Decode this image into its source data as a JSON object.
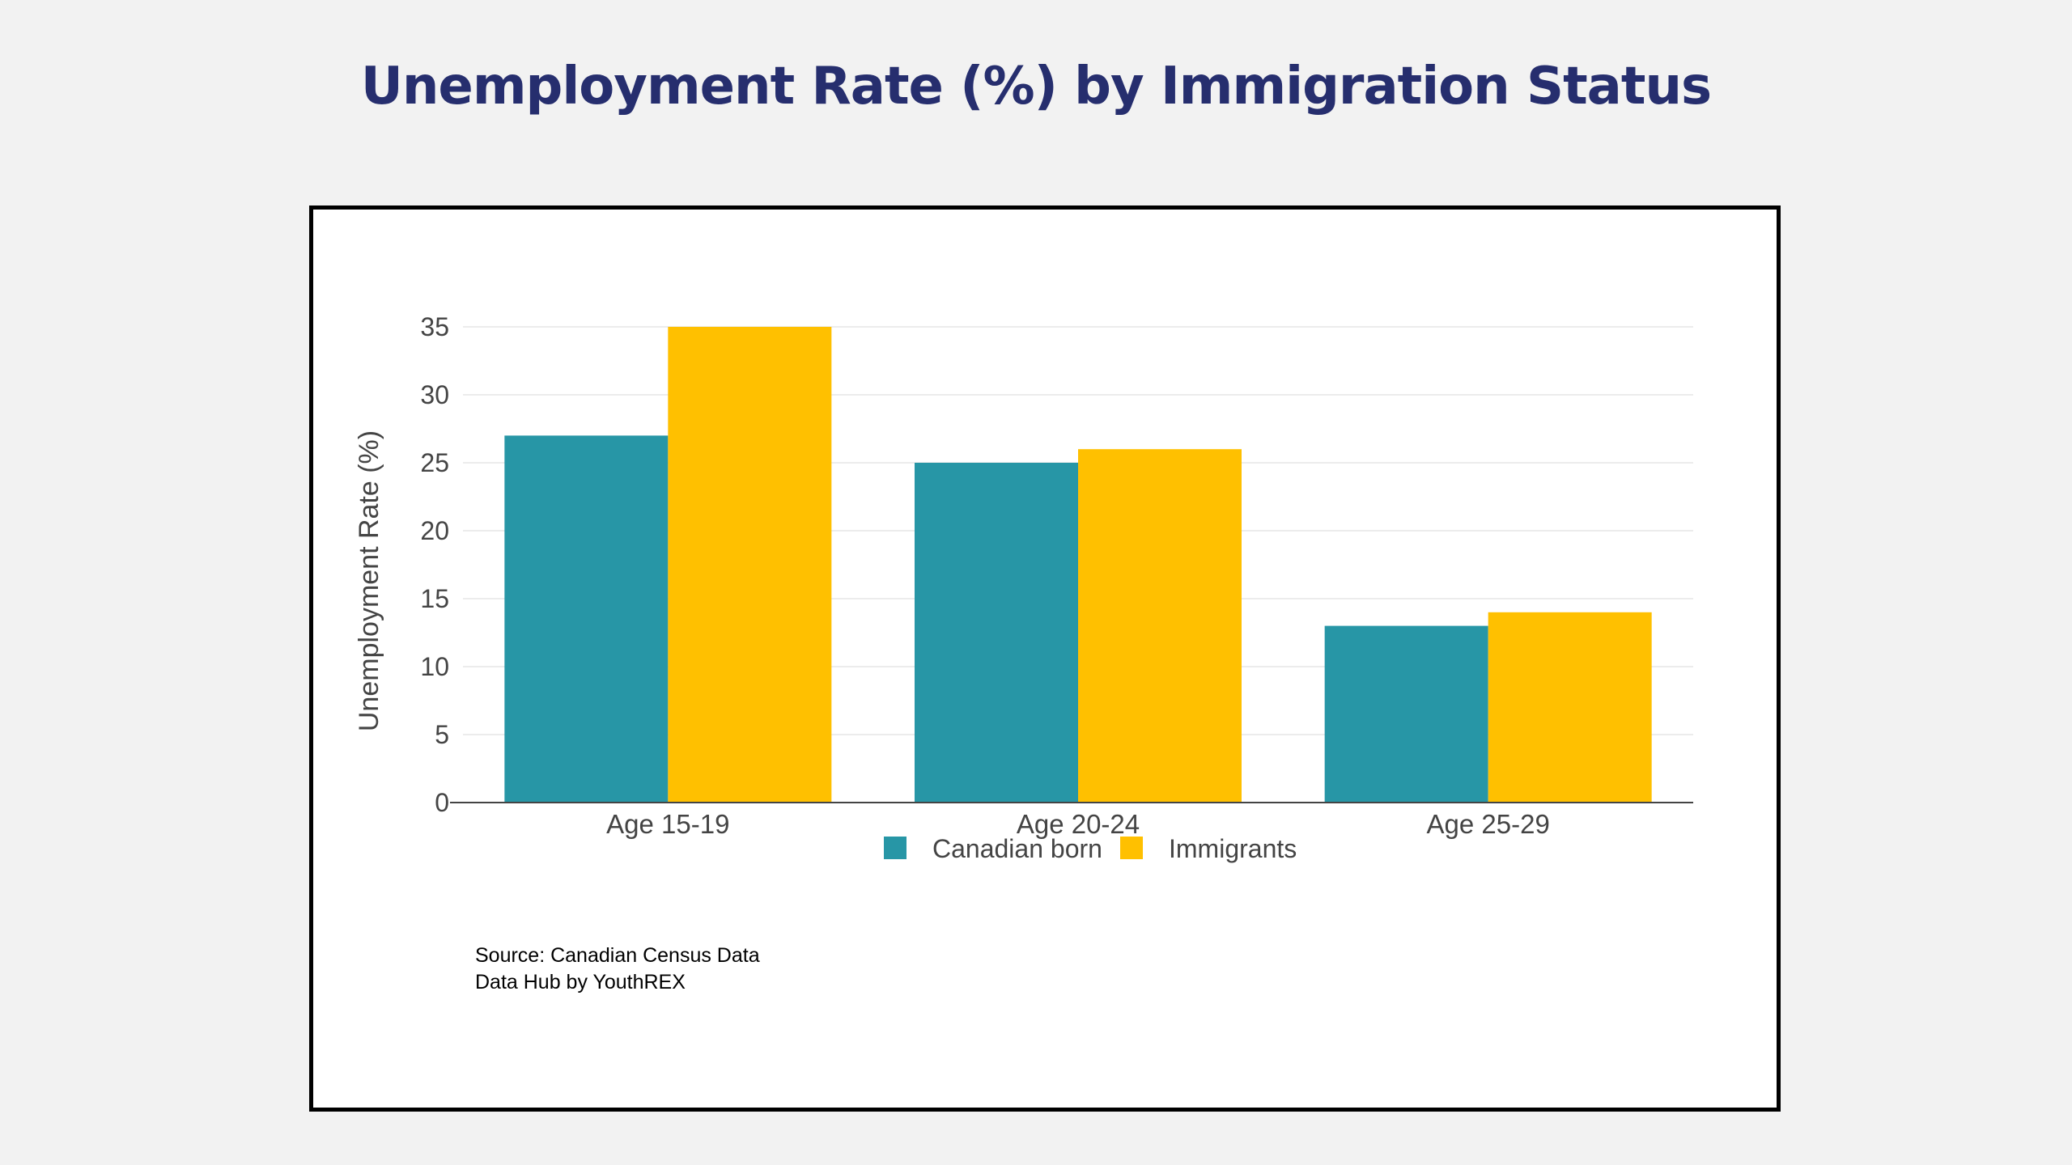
{
  "header": {
    "title": "Unemployment Rate (%) by Immigration Status"
  },
  "source": {
    "line1": "Source: Canadian Census Data",
    "line2": "Data Hub by YouthREX"
  },
  "chart_data": {
    "type": "bar",
    "title": "Unemployment Rate (%) by Immigration Status",
    "xlabel": "",
    "ylabel": "Unemployment Rate (%)",
    "categories": [
      "Age 15-19",
      "Age 20-24",
      "Age 25-29"
    ],
    "series": [
      {
        "name": "Canadian born",
        "values": [
          27,
          25,
          13
        ],
        "color": "#2796a6"
      },
      {
        "name": "Immigrants",
        "values": [
          35,
          26,
          14
        ],
        "color": "#ffc000"
      }
    ],
    "ylim": [
      0,
      35
    ],
    "yticks": [
      0,
      5,
      10,
      15,
      20,
      25,
      30,
      35
    ],
    "grid": true,
    "legend": "bottom-center"
  }
}
